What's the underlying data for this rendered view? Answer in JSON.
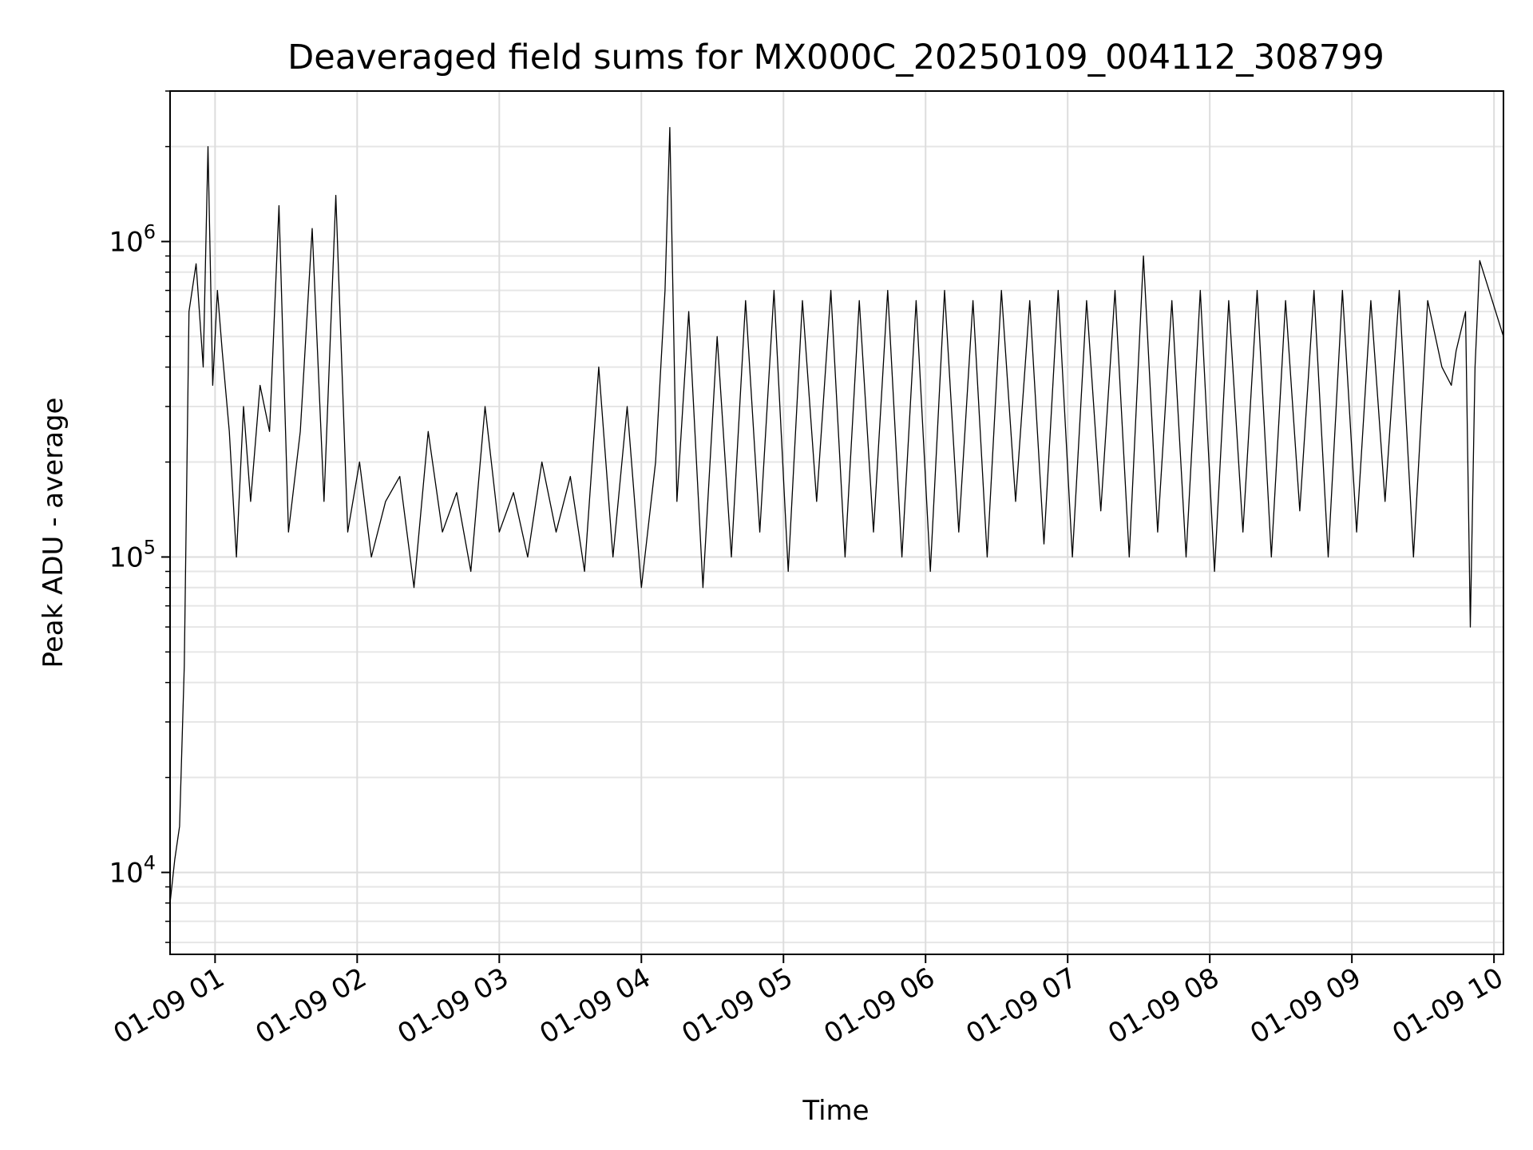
{
  "chart_data": {
    "type": "line",
    "title": "Deaveraged field sums for MX000C_20250109_004112_308799",
    "xlabel": "Time",
    "ylabel": "Peak ADU - average",
    "xscale": "time",
    "yscale": "log",
    "xlim": [
      "2025-01-09 00:41",
      "2025-01-09 10:04"
    ],
    "ylim": [
      5500,
      3000000
    ],
    "x_ticks": [
      "01-09 01",
      "01-09 02",
      "01-09 03",
      "01-09 04",
      "01-09 05",
      "01-09 06",
      "01-09 07",
      "01-09 08",
      "01-09 09",
      "01-09 10"
    ],
    "y_ticks": [
      {
        "base": "10",
        "exp": "4",
        "value": 10000
      },
      {
        "base": "10",
        "exp": "5",
        "value": 100000
      },
      {
        "base": "10",
        "exp": "6",
        "value": 1000000
      }
    ],
    "grid": true,
    "line_color": "#000000",
    "series": [
      {
        "x": [
          "00:41",
          "00:43",
          "00:45",
          "00:47",
          "00:49",
          "00:52",
          "00:55",
          "00:57",
          "00:59",
          "01:01",
          "01:03",
          "01:06",
          "01:09",
          "01:12",
          "01:15",
          "01:19",
          "01:23",
          "01:27",
          "01:31",
          "01:36",
          "01:41",
          "01:46",
          "01:51",
          "01:56",
          "02:01",
          "02:06",
          "02:12",
          "02:18",
          "02:24",
          "02:30",
          "02:36",
          "02:42",
          "02:48",
          "02:54",
          "03:00",
          "03:06",
          "03:12",
          "03:18",
          "03:24",
          "03:30",
          "03:36",
          "03:42",
          "03:48",
          "03:54",
          "04:00",
          "04:06",
          "04:10",
          "04:12",
          "04:15",
          "04:20",
          "04:26",
          "04:32",
          "04:38",
          "04:44",
          "04:50",
          "04:56",
          "05:02",
          "05:08",
          "05:14",
          "05:20",
          "05:26",
          "05:32",
          "05:38",
          "05:44",
          "05:50",
          "05:56",
          "06:02",
          "06:08",
          "06:14",
          "06:20",
          "06:26",
          "06:32",
          "06:38",
          "06:44",
          "06:50",
          "06:56",
          "07:02",
          "07:08",
          "07:14",
          "07:20",
          "07:26",
          "07:32",
          "07:38",
          "07:44",
          "07:50",
          "07:56",
          "08:02",
          "08:08",
          "08:14",
          "08:20",
          "08:26",
          "08:32",
          "08:38",
          "08:44",
          "08:50",
          "08:56",
          "09:02",
          "09:08",
          "09:14",
          "09:20",
          "09:26",
          "09:32",
          "09:38",
          "09:42",
          "09:44",
          "09:48",
          "09:50",
          "09:52",
          "09:54",
          "10:04"
        ],
        "y": [
          8000,
          11000,
          14000,
          45000,
          600000,
          850000,
          400000,
          2000000,
          350000,
          700000,
          450000,
          250000,
          100000,
          300000,
          150000,
          350000,
          250000,
          1300000,
          120000,
          250000,
          1100000,
          150000,
          1400000,
          120000,
          200000,
          100000,
          150000,
          180000,
          80000,
          250000,
          120000,
          160000,
          90000,
          300000,
          120000,
          160000,
          100000,
          200000,
          120000,
          180000,
          90000,
          400000,
          100000,
          300000,
          80000,
          200000,
          700000,
          2300000,
          150000,
          600000,
          80000,
          500000,
          100000,
          650000,
          120000,
          700000,
          90000,
          650000,
          150000,
          700000,
          100000,
          650000,
          120000,
          700000,
          100000,
          650000,
          90000,
          700000,
          120000,
          650000,
          100000,
          700000,
          150000,
          650000,
          110000,
          700000,
          100000,
          650000,
          140000,
          700000,
          100000,
          900000,
          120000,
          650000,
          100000,
          700000,
          90000,
          650000,
          120000,
          700000,
          100000,
          650000,
          140000,
          700000,
          100000,
          700000,
          120000,
          650000,
          150000,
          700000,
          100000,
          650000,
          400000,
          350000,
          450000,
          600000,
          60000,
          400000,
          870000,
          500000
        ]
      }
    ]
  }
}
